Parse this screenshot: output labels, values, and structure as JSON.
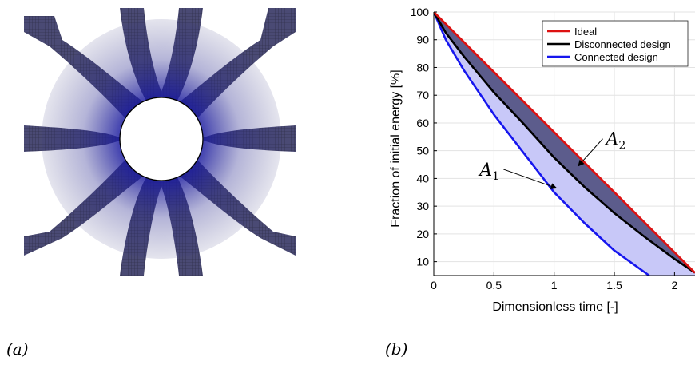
{
  "panel_labels": {
    "left": "(a)",
    "right": "(b)"
  },
  "mesh_colors": {
    "outer": "#4a4a74",
    "inner": "#1f1f9c",
    "hole_edge": "#000000"
  },
  "chart_data": {
    "type": "line",
    "xlabel": "Dimensionless time [-]",
    "ylabel": "Fraction of initial energy [%]",
    "xlim": [
      0,
      2.17
    ],
    "ylim": [
      5,
      100
    ],
    "xticks": [
      0,
      0.5,
      1,
      1.5,
      2
    ],
    "xtick_labels": [
      "0",
      "0.5",
      "1",
      "1.5",
      "2"
    ],
    "yticks": [
      10,
      20,
      30,
      40,
      50,
      60,
      70,
      80,
      90,
      100
    ],
    "ytick_labels": [
      "10",
      "20",
      "30",
      "40",
      "50",
      "60",
      "70",
      "80",
      "90",
      "100"
    ],
    "grid": true,
    "legend_position": "top-right",
    "series": [
      {
        "name": "Ideal",
        "color": "#dd1111",
        "x": [
          0,
          2.17
        ],
        "y": [
          100,
          6
        ]
      },
      {
        "name": "Disconnected design",
        "color": "#000000",
        "x": [
          0,
          0.1,
          0.25,
          0.5,
          0.75,
          1.0,
          1.25,
          1.5,
          1.75,
          2.0,
          2.17
        ],
        "y": [
          100,
          92.5,
          84,
          71,
          59.5,
          47.5,
          37,
          27.5,
          19,
          11,
          6
        ]
      },
      {
        "name": "Connected design",
        "color": "#1616ee",
        "x": [
          0,
          0.1,
          0.25,
          0.5,
          0.75,
          1.0,
          1.25,
          1.5,
          1.79
        ],
        "y": [
          100,
          90,
          79,
          63,
          49,
          35,
          24,
          14,
          5
        ]
      }
    ],
    "fill_regions": [
      {
        "between": [
          "Ideal",
          "Disconnected design"
        ],
        "color": "#5c5c8c"
      },
      {
        "between": [
          "Disconnected design",
          "Connected design"
        ],
        "color": "#c8c8f8"
      }
    ],
    "annotations": [
      {
        "label": "A",
        "subscript": "1",
        "text_x": 0.38,
        "text_y": 41,
        "arrow_to_x": 1.02,
        "arrow_to_y": 36.5
      },
      {
        "label": "A",
        "subscript": "2",
        "text_x": 1.43,
        "text_y": 52,
        "arrow_to_x": 1.2,
        "arrow_to_y": 44.5
      }
    ]
  }
}
